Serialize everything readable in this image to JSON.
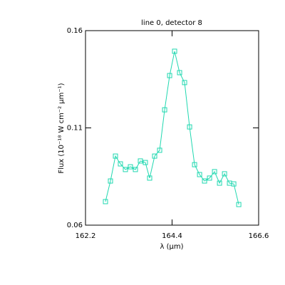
{
  "chart_data": {
    "type": "line",
    "title": "line 0, detector 8",
    "xlabel": "λ (μm)",
    "ylabel": "Flux (10⁻¹⁸ W cm⁻² μm⁻¹)",
    "x": [
      162.707,
      162.834,
      162.961,
      163.087,
      163.214,
      163.341,
      163.468,
      163.595,
      163.721,
      163.83,
      163.957,
      164.084,
      164.211,
      164.338,
      164.464,
      164.591,
      164.718,
      164.845,
      164.972,
      165.099,
      165.225,
      165.352,
      165.479,
      165.606,
      165.733,
      165.859,
      165.968,
      166.095
    ],
    "series": [
      {
        "color": "#20d8b0",
        "values": [
          0.0721,
          0.0827,
          0.0955,
          0.0915,
          0.0886,
          0.09,
          0.0886,
          0.093,
          0.0922,
          0.0842,
          0.0955,
          0.0985,
          0.1193,
          0.1369,
          0.1494,
          0.1384,
          0.1333,
          0.1105,
          0.0911,
          0.086,
          0.0827,
          0.0842,
          0.0875,
          0.0816,
          0.0864,
          0.0816,
          0.0812,
          0.0706
        ]
      }
    ],
    "xlim": [
      162.2,
      166.6
    ],
    "xticks": [
      162.2,
      164.4,
      166.6
    ],
    "ylim": [
      0.06,
      0.16
    ],
    "yticks": [
      0.06,
      0.11,
      0.16
    ],
    "marker": "square"
  }
}
